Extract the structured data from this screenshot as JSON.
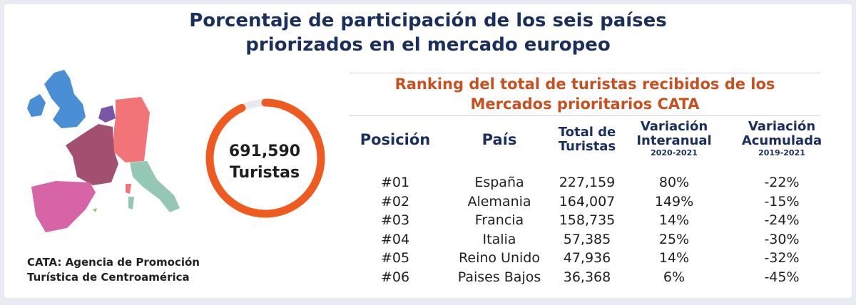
{
  "title": "Porcentaje de participación de los seis países priorizados en el mercado europeo",
  "total": {
    "value": "691,590",
    "unit": "Turistas"
  },
  "caption": [
    "CATA: Agencia de Promoción",
    "Turística de Centroamérica"
  ],
  "ranking_title": [
    "Ranking del total de turistas recibidos de los",
    "Mercados prioritarios CATA"
  ],
  "headers": {
    "posicion": "Posición",
    "pais": "País",
    "total": [
      "Total de",
      "Turistas"
    ],
    "interanual": [
      "Variación",
      "Interanual",
      "2020-2021"
    ],
    "acumulada": [
      "Variación",
      "Acumulada",
      "2019-2021"
    ]
  },
  "colors": {
    "title": "#1a2f5e",
    "accent": "#c8501f",
    "ring": "#ee5a1f",
    "ring_track": "#e6e8f2",
    "spain": "#d864a8",
    "france": "#a35070",
    "germany": "#f27479",
    "italy": "#95c7b5",
    "uk": "#4a8fd6",
    "netherlands": "#7b56a8"
  },
  "chart_data": {
    "type": "table",
    "donut_fill": 0.93,
    "columns": [
      "Posición",
      "País",
      "Total de Turistas",
      "Variación Interanual 2020-2021",
      "Variación Acumulada 2019-2021"
    ],
    "rows": [
      {
        "pos": "#01",
        "country": "España",
        "total": "227,159",
        "yoy": "80%",
        "acc": "-22%"
      },
      {
        "pos": "#02",
        "country": "Alemania",
        "total": "164,007",
        "yoy": "149%",
        "acc": "-15%"
      },
      {
        "pos": "#03",
        "country": "Francia",
        "total": "158,735",
        "yoy": "14%",
        "acc": "-24%"
      },
      {
        "pos": "#04",
        "country": "Italia",
        "total": "57,385",
        "yoy": "25%",
        "acc": "-30%"
      },
      {
        "pos": "#05",
        "country": "Reino Unido",
        "total": "47,936",
        "yoy": "14%",
        "acc": "-32%"
      },
      {
        "pos": "#06",
        "country": "Paises Bajos",
        "total": "36,368",
        "yoy": "6%",
        "acc": "-45%"
      }
    ]
  }
}
